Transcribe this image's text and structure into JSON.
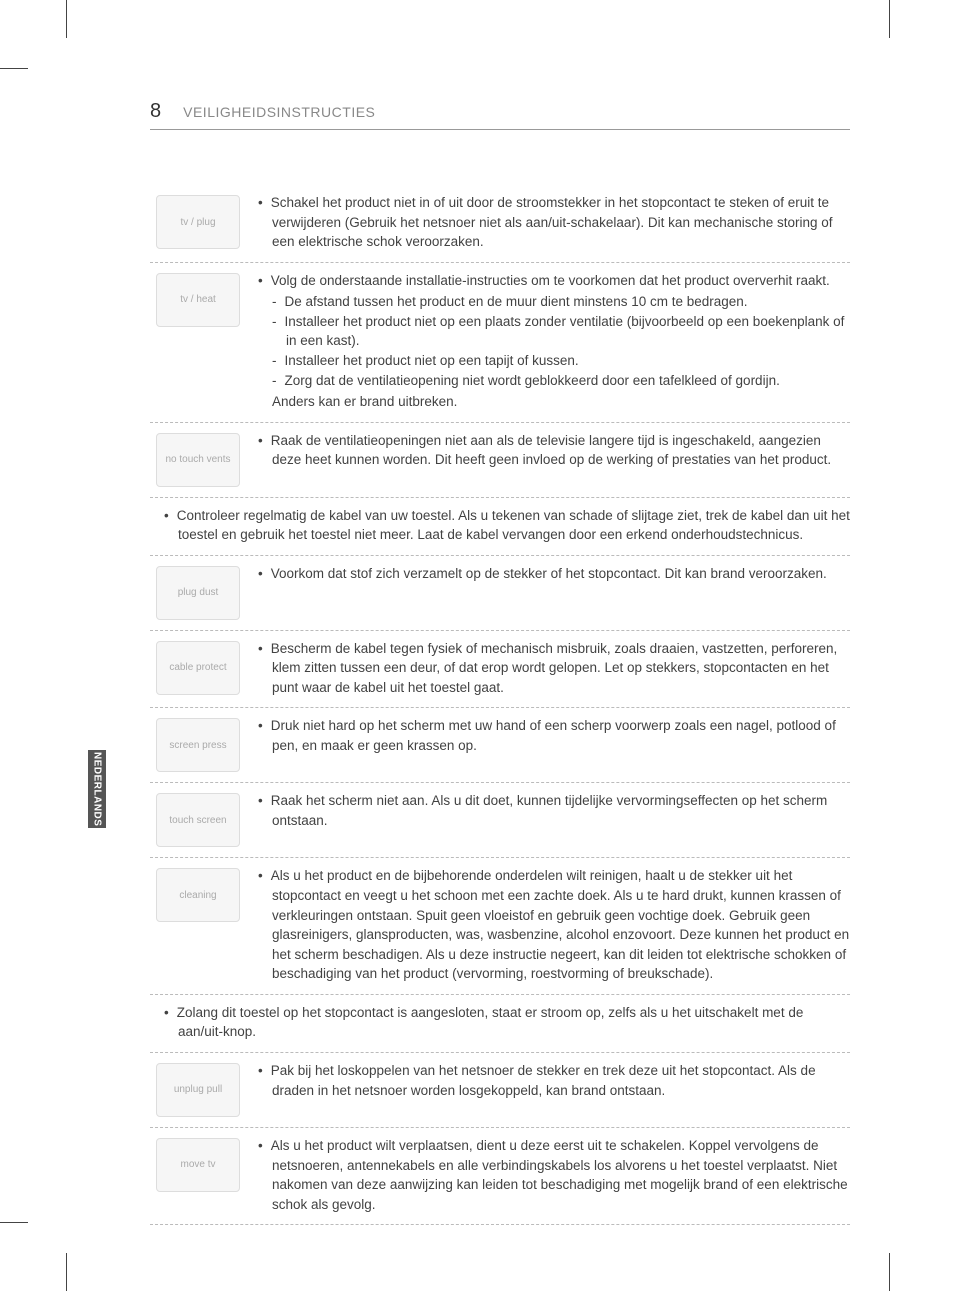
{
  "page_number": "8",
  "section_title": "VEILIGHEIDSINSTRUCTIES",
  "side_tab": "NEDERLANDS",
  "rows": [
    {
      "icon": "tv / plug",
      "bullets": [
        "Schakel het product niet in of uit door de stroomstekker in het stopcontact te steken of eruit te verwijderen (Gebruik het netsnoer niet als aan/uit-schakelaar). Dit kan mechanische storing of een elektrische schok veroorzaken."
      ]
    },
    {
      "icon": "tv / heat",
      "intro": "Volg de onderstaande installatie-instructies om te voorkomen dat het product oververhit raakt.",
      "sublist": [
        "De afstand tussen het product en de muur dient minstens 10 cm te bedragen.",
        "Installeer het product niet op een plaats zonder ventilatie (bijvoorbeeld op een boekenplank of in een kast).",
        "Installeer het product niet op een tapijt of kussen.",
        "Zorg dat de ventilatieopening niet wordt geblokkeerd door een tafelkleed of gordijn."
      ],
      "outro": "Anders kan er brand uitbreken."
    },
    {
      "icon": "no touch vents",
      "bullets": [
        "Raak de ventilatieopeningen niet aan als de televisie langere tijd is ingeschakeld, aangezien deze heet kunnen worden. Dit heeft geen invloed op de werking of prestaties van het product."
      ]
    },
    {
      "full": true,
      "bullets": [
        "Controleer regelmatig de kabel van uw toestel. Als u tekenen van schade of slijtage ziet, trek de kabel dan uit het toestel en gebruik het toestel niet meer. Laat de kabel vervangen door een erkend onderhoudstechnicus."
      ]
    },
    {
      "icon": "plug dust",
      "bullets": [
        "Voorkom dat stof zich verzamelt op de stekker of het stopcontact. Dit kan brand veroorzaken."
      ]
    },
    {
      "icon": "cable protect",
      "bullets": [
        "Bescherm de kabel tegen fysiek of mechanisch misbruik, zoals draaien, vastzetten, perforeren, klem zitten tussen een deur, of dat erop wordt gelopen. Let op stekkers, stopcontacten en het punt waar de kabel uit het toestel gaat."
      ]
    },
    {
      "icon": "screen press",
      "bullets": [
        "Druk niet hard op het scherm met uw hand of een scherp voorwerp zoals een nagel, potlood of pen, en maak er geen krassen op."
      ]
    },
    {
      "icon": "touch screen",
      "bullets": [
        "Raak het scherm niet aan. Als u dit doet, kunnen tijdelijke vervormingseffecten op het scherm ontstaan."
      ]
    },
    {
      "icon": "cleaning",
      "bullets": [
        "Als u het product en de bijbehorende onderdelen wilt reinigen, haalt u de stekker uit het stopcontact en veegt u het schoon met een zachte doek. Als u te hard drukt, kunnen krassen of verkleuringen ontstaan. Spuit geen vloeistof en gebruik geen vochtige doek. Gebruik geen glasreinigers, glansproducten, was, wasbenzine, alcohol enzovoort. Deze kunnen het product en het scherm beschadigen. Als u deze instructie negeert, kan dit leiden tot elektrische schokken of beschadiging van het product (vervorming, roestvorming of breukschade)."
      ]
    },
    {
      "full": true,
      "bullets": [
        "Zolang dit toestel op het stopcontact is aangesloten, staat er stroom op, zelfs als u het uitschakelt met de aan/uit-knop."
      ]
    },
    {
      "icon": "unplug pull",
      "bullets": [
        "Pak bij het loskoppelen van het netsnoer de stekker en trek deze uit het stopcontact. Als de draden in het netsnoer worden losgekoppeld, kan brand ontstaan."
      ]
    },
    {
      "icon": "move tv",
      "bullets": [
        "Als u het product wilt verplaatsen, dient u deze eerst uit te schakelen. Koppel vervolgens de netsnoeren, antennekabels en alle verbindingskabels los alvorens u het toestel verplaatst. Niet nakomen van deze aanwijzing kan leiden tot beschadiging met mogelijk brand of een elektrische schok als gevolg."
      ]
    }
  ]
}
